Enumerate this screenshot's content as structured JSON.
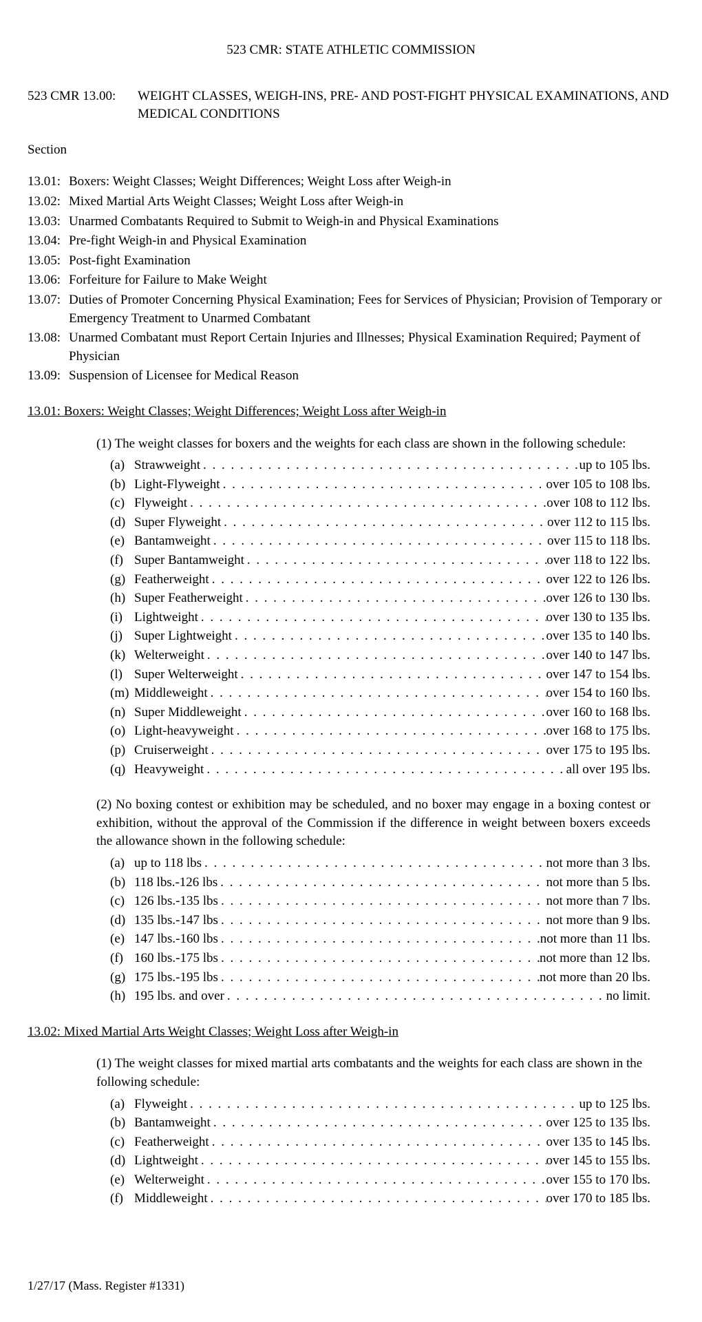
{
  "header": "523 CMR:   STATE ATHLETIC COMMISSION",
  "titleCode": "523 CMR 13.00:",
  "titleText": "WEIGHT  CLASSES,  WEIGH-INS,  PRE-  AND POST-FIGHT PHYSICAL EXAMINATIONS, AND MEDICAL CONDITIONS",
  "sectionLabel": "Section",
  "toc": [
    {
      "num": "13.01:",
      "text": "Boxers: Weight Classes; Weight Differences; Weight Loss after Weigh-in"
    },
    {
      "num": "13.02:",
      "text": "Mixed Martial Arts Weight Classes; Weight Loss after Weigh-in"
    },
    {
      "num": "13.03:",
      "text": "Unarmed Combatants Required to Submit to Weigh-in and Physical Examinations"
    },
    {
      "num": "13.04:",
      "text": "Pre-fight Weigh-in and Physical Examination"
    },
    {
      "num": "13.05:",
      "text": "Post-fight Examination"
    },
    {
      "num": "13.06:",
      "text": "Forfeiture for Failure to Make Weight"
    },
    {
      "num": "13.07:",
      "text": "Duties of Promoter Concerning Physical Examination; Fees for Services of Physician; Provision of Temporary or Emergency Treatment to Unarmed Combatant"
    },
    {
      "num": "13.08:",
      "text": "Unarmed Combatant must Report Certain Injuries and Illnesses; Physical Examination Required; Payment of Physician"
    },
    {
      "num": "13.09:",
      "text": "Suspension of Licensee for Medical Reason"
    }
  ],
  "section1301": {
    "heading": "13.01:  Boxers: Weight Classes; Weight Differences; Weight Loss after Weigh-in",
    "intro1": "(1)  The weight classes for boxers and the weights for each class are shown in the following schedule:",
    "list1": [
      {
        "letter": "(a)",
        "name": "Strawweight",
        "value": "up to 105 lbs."
      },
      {
        "letter": "(b)",
        "name": "Light-Flyweight",
        "value": "over 105 to 108 lbs."
      },
      {
        "letter": "(c)",
        "name": "Flyweight",
        "value": "over 108 to 112 lbs."
      },
      {
        "letter": "(d)",
        "name": "Super Flyweight",
        "value": "over 112 to 115 lbs."
      },
      {
        "letter": "(e)",
        "name": "Bantamweight",
        "value": "over 115 to 118 lbs."
      },
      {
        "letter": "(f)",
        "name": "Super Bantamweight",
        "value": "over 118 to 122 lbs."
      },
      {
        "letter": "(g)",
        "name": "Featherweight",
        "value": "over 122 to 126 lbs."
      },
      {
        "letter": "(h)",
        "name": "Super Featherweight",
        "value": "over 126 to 130 lbs."
      },
      {
        "letter": "(i)",
        "name": "Lightweight",
        "value": "over 130 to 135 lbs."
      },
      {
        "letter": "(j)",
        "name": "Super Lightweight",
        "value": "over 135 to 140 lbs."
      },
      {
        "letter": "(k)",
        "name": "Welterweight",
        "value": "over 140 to 147 lbs."
      },
      {
        "letter": "(l)",
        "name": "Super Welterweight",
        "value": "over 147 to 154 lbs."
      },
      {
        "letter": "(m)",
        "name": "Middleweight",
        "value": "over 154 to 160 lbs."
      },
      {
        "letter": "(n)",
        "name": "Super Middleweight",
        "value": "over 160 to 168 lbs."
      },
      {
        "letter": "(o)",
        "name": "Light-heavyweight",
        "value": "over 168 to 175 lbs."
      },
      {
        "letter": "(p)",
        "name": "Cruiserweight",
        "value": "over 175 to 195 lbs."
      },
      {
        "letter": "(q)",
        "name": "Heavyweight",
        "value": "all over 195 lbs."
      }
    ],
    "intro2": "(2)  No boxing contest or exhibition may be scheduled, and no boxer may engage in a boxing contest or exhibition, without the approval of the Commission if the difference in weight between boxers exceeds the allowance shown in the following schedule:",
    "list2": [
      {
        "letter": "(a)",
        "name": "up to 118 lbs",
        "value": "not more than 3 lbs."
      },
      {
        "letter": "(b)",
        "name": "118 lbs.-126 lbs",
        "value": "not more than 5 lbs."
      },
      {
        "letter": "(c)",
        "name": "126 lbs.-135 lbs",
        "value": "not more than 7 lbs."
      },
      {
        "letter": "(d)",
        "name": "135 lbs.-147 lbs",
        "value": "not more than 9 lbs."
      },
      {
        "letter": "(e)",
        "name": "147 lbs.-160 lbs",
        "value": "not more than 11 lbs."
      },
      {
        "letter": "(f)",
        "name": "160 lbs.-175 lbs",
        "value": "not more than 12 lbs."
      },
      {
        "letter": "(g)",
        "name": "175 lbs.-195 lbs",
        "value": "not more than 20 lbs."
      },
      {
        "letter": "(h)",
        "name": "195 lbs. and over",
        "value": "no limit."
      }
    ]
  },
  "section1302": {
    "heading": "13.02:  Mixed Martial Arts Weight Classes; Weight Loss after Weigh-in",
    "intro1": "(1)  The weight classes for mixed martial arts combatants and the weights for each class are shown in the following schedule:",
    "list1": [
      {
        "letter": "(a)",
        "name": "Flyweight",
        "value": "up to 125 lbs."
      },
      {
        "letter": "(b)",
        "name": "Bantamweight",
        "value": "over 125 to 135 lbs."
      },
      {
        "letter": "(c)",
        "name": "Featherweight",
        "value": "over 135 to 145 lbs."
      },
      {
        "letter": "(d)",
        "name": "Lightweight",
        "value": "over 145 to 155 lbs."
      },
      {
        "letter": "(e)",
        "name": "Welterweight",
        "value": "over 155 to 170 lbs."
      },
      {
        "letter": "(f)",
        "name": "Middleweight",
        "value": "over 170 to 185 lbs."
      }
    ]
  },
  "footer": "1/27/17 (Mass. Register #1331)"
}
